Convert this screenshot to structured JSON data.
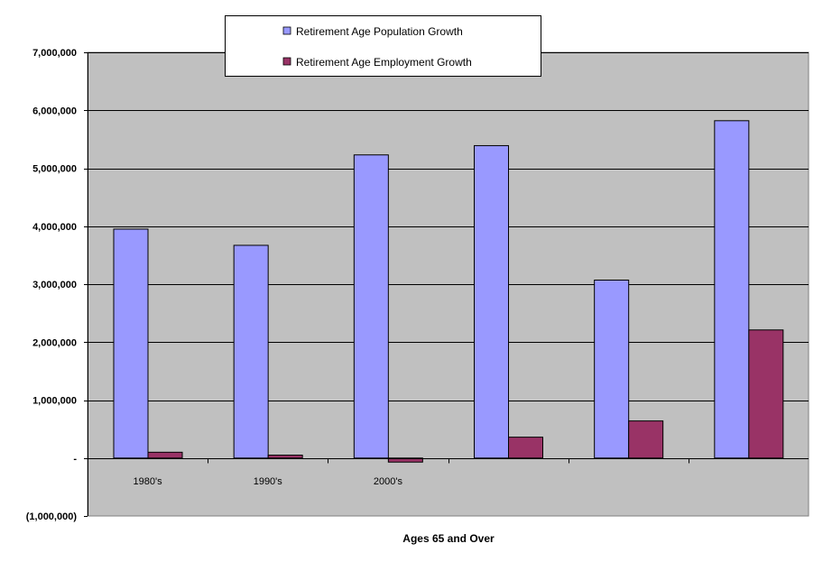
{
  "chart_data": {
    "type": "bar",
    "categories": [
      "1980's",
      "1990's",
      "2000's",
      "",
      "",
      ""
    ],
    "series": [
      {
        "name": "Retirement Age Population Growth",
        "color": "#9999ff",
        "values": [
          3950000,
          3670000,
          5230000,
          5390000,
          3070000,
          5820000
        ]
      },
      {
        "name": "Retirement Age Employment Growth",
        "color": "#993366",
        "values": [
          100000,
          50000,
          -70000,
          360000,
          640000,
          2210000
        ]
      }
    ],
    "title": "",
    "xlabel": "Ages 65 and Over",
    "ylabel": "",
    "ylim": [
      -1000000,
      7000000
    ],
    "yticks": [
      -1000000,
      0,
      1000000,
      2000000,
      3000000,
      4000000,
      5000000,
      6000000,
      7000000
    ],
    "ytick_labels": [
      "(1,000,000)",
      "-",
      "1,000,000",
      "2,000,000",
      "3,000,000",
      "4,000,000",
      "5,000,000",
      "6,000,000",
      "7,000,000"
    ],
    "plot_background": "#c0c0c0",
    "grid": true,
    "legend_position": "top"
  }
}
